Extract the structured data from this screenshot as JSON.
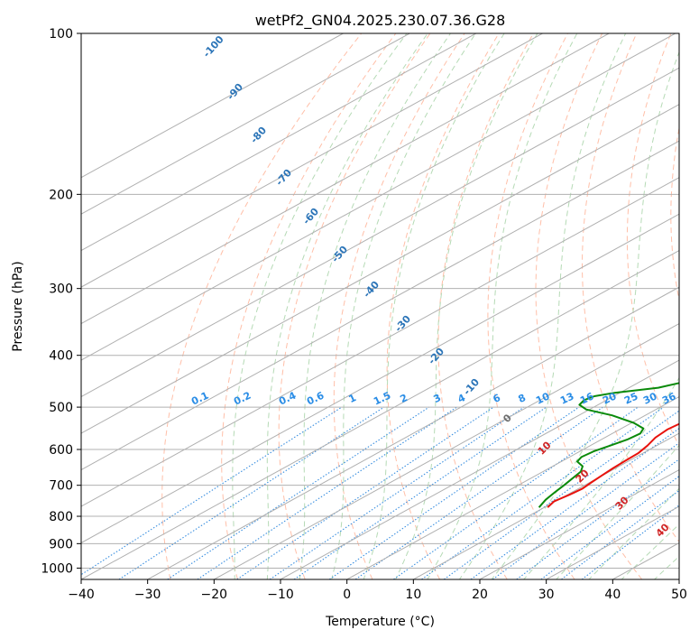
{
  "chart_data": {
    "type": "line",
    "subtype": "skew-T log-P sounding",
    "title": "wetPf2_GN04.2025.230.07.36.G28",
    "xlabel": "Temperature (°C)",
    "ylabel": "Pressure (hPa)",
    "xlim": [
      -40,
      50
    ],
    "ylim": [
      1050,
      100
    ],
    "yscale": "log",
    "x_ticks": [
      -40,
      -30,
      -20,
      -10,
      0,
      10,
      20,
      30,
      40,
      50
    ],
    "y_ticks": [
      100,
      200,
      300,
      400,
      500,
      600,
      700,
      800,
      900,
      1000
    ],
    "grid": true,
    "colors": {
      "temperature": "#e8120c",
      "dewpoint": "#0a8a0a",
      "isotherms": "#b0b0b0",
      "dry_adiabats": "#ffbfa8",
      "moist_adiabats": "#b5dab5",
      "mixing_ratio": "#3a8fe0",
      "theta_e": "#dcc9a8",
      "dry_adiabat_labels": "#2c75b8",
      "mixing_ratio_labels": "#2a8de6",
      "moist_adiabat_labels": "#d02424"
    },
    "series": [
      {
        "key": "temperature",
        "points": [
          [
            10.5,
            770
          ],
          [
            9.8,
            750
          ],
          [
            10.3,
            730
          ],
          [
            10.6,
            710
          ],
          [
            10.2,
            690
          ],
          [
            9.9,
            670
          ],
          [
            9.6,
            650
          ],
          [
            9.4,
            630
          ],
          [
            9.3,
            610
          ],
          [
            8.6,
            590
          ],
          [
            7.6,
            570
          ],
          [
            7.2,
            550
          ],
          [
            7.6,
            530
          ],
          [
            8.2,
            510
          ],
          [
            8.6,
            490
          ],
          [
            8.4,
            470
          ],
          [
            7.2,
            440
          ],
          [
            5.7,
            410
          ],
          [
            3.8,
            380
          ],
          [
            1.7,
            350
          ],
          [
            -0.3,
            320
          ],
          [
            -1.9,
            295
          ],
          [
            -3.3,
            275
          ],
          [
            -4.5,
            258
          ],
          [
            -4.9,
            248
          ],
          [
            -3.9,
            238
          ],
          [
            -1.1,
            228
          ],
          [
            3.6,
            218
          ],
          [
            7.9,
            208
          ],
          [
            10.5,
            198
          ],
          [
            13.5,
            185
          ],
          [
            17.5,
            170
          ],
          [
            20.2,
            158
          ],
          [
            22.4,
            148
          ],
          [
            25.4,
            135
          ],
          [
            27.5,
            125
          ],
          [
            29.5,
            115
          ],
          [
            31.4,
            107
          ],
          [
            33.2,
            100
          ]
        ]
      },
      {
        "key": "dewpoint",
        "points": [
          [
            9.2,
            770
          ],
          [
            8.1,
            745
          ],
          [
            7.4,
            720
          ],
          [
            6.9,
            700
          ],
          [
            6.3,
            680
          ],
          [
            5.7,
            660
          ],
          [
            4.5,
            645
          ],
          [
            2.4,
            632
          ],
          [
            1.8,
            620
          ],
          [
            2.1,
            605
          ],
          [
            3.0,
            590
          ],
          [
            3.9,
            575
          ],
          [
            4.2,
            560
          ],
          [
            3.3,
            548
          ],
          [
            0.3,
            535
          ],
          [
            -5.0,
            518
          ],
          [
            -10.5,
            505
          ],
          [
            -12.8,
            495
          ],
          [
            -13.4,
            485
          ],
          [
            -12.9,
            477
          ],
          [
            -10.8,
            470
          ],
          [
            -5.6,
            460
          ],
          [
            -2.6,
            445
          ],
          [
            -1.7,
            430
          ],
          [
            -1.5,
            415
          ],
          [
            -1.9,
            400
          ],
          [
            -2.8,
            385
          ],
          [
            -4.1,
            370
          ],
          [
            -4.4,
            345
          ],
          [
            -4.4,
            320
          ],
          [
            -4.4,
            300
          ],
          [
            -4.8,
            282
          ],
          [
            -5.2,
            270
          ],
          [
            -5.7,
            258
          ],
          [
            -6.8,
            246
          ],
          [
            -8.1,
            237
          ],
          [
            -10.6,
            228
          ],
          [
            -12.9,
            220
          ],
          [
            -13.9,
            213
          ],
          [
            -10.1,
            207
          ],
          [
            -6.1,
            200
          ],
          [
            -3.1,
            194
          ],
          [
            -1.7,
            188
          ],
          [
            -1.2,
            180
          ],
          [
            -1.2,
            172
          ],
          [
            -1.4,
            165
          ],
          [
            -1.8,
            158
          ],
          [
            -1.6,
            150
          ],
          [
            -1.6,
            143
          ],
          [
            -1.7,
            135
          ],
          [
            -2.2,
            128
          ],
          [
            -2.4,
            122
          ],
          [
            -2.0,
            118
          ],
          [
            -0.5,
            113
          ],
          [
            1.6,
            108
          ],
          [
            3.8,
            103
          ],
          [
            5.2,
            100
          ]
        ]
      }
    ],
    "dry_adiabat_labels": [
      "-100",
      "-90",
      "-80",
      "-70",
      "-60",
      "-50",
      "-40",
      "-30",
      "-20",
      "-10"
    ],
    "mixing_ratio_labels": [
      "0.1",
      "0.2",
      "0.4",
      "0.6",
      "1",
      "1.5",
      "2",
      "3",
      "4",
      "6",
      "8",
      "10",
      "13",
      "16",
      "20",
      "25",
      "30",
      "36"
    ],
    "moist_adiabat_labels": [
      "0",
      "10",
      "20",
      "30",
      "40"
    ]
  }
}
